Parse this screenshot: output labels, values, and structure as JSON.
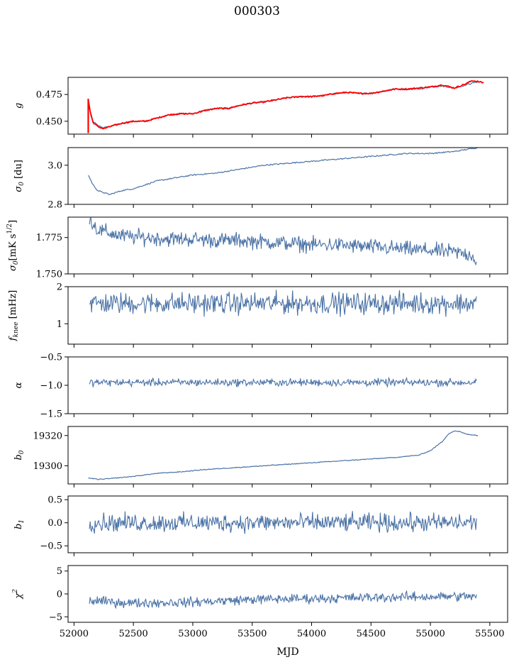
{
  "figure": {
    "title": "000303",
    "xlabel": "MJD",
    "x_ticks": [
      "52000",
      "52500",
      "53000",
      "53500",
      "54000",
      "54500",
      "55000",
      "55500"
    ]
  },
  "chart_data": [
    {
      "type": "line",
      "panel": "g",
      "ylabel": "g",
      "xlim": [
        51950,
        55650
      ],
      "ylim": [
        0.438,
        0.491
      ],
      "y_ticks": [
        0.45,
        0.475
      ],
      "y_tick_labels": [
        "0.450",
        "0.475"
      ],
      "series": [
        {
          "color": "#4a72a6",
          "values_x": [
            52120,
            52140,
            52160,
            52200,
            52250,
            52300,
            52400,
            52500,
            52600,
            52700,
            52800,
            52900,
            53000,
            53100,
            53200,
            53300,
            53400,
            53500,
            53600,
            53700,
            53800,
            53900,
            54000,
            54100,
            54200,
            54300,
            54400,
            54500,
            54600,
            54700,
            54800,
            54900,
            55000,
            55100,
            55200,
            55300,
            55400
          ],
          "values_y": [
            0.466,
            0.458,
            0.45,
            0.446,
            0.444,
            0.445,
            0.448,
            0.45,
            0.45,
            0.453,
            0.456,
            0.457,
            0.457,
            0.46,
            0.462,
            0.462,
            0.465,
            0.467,
            0.468,
            0.47,
            0.472,
            0.473,
            0.473,
            0.474,
            0.476,
            0.477,
            0.476,
            0.476,
            0.478,
            0.48,
            0.48,
            0.48,
            0.482,
            0.483,
            0.481,
            0.484,
            0.487
          ]
        },
        {
          "color": "#ff0000",
          "values_x": [
            52120,
            52140,
            52160,
            52200,
            52250,
            52300,
            52400,
            52500,
            52600,
            52700,
            52800,
            52900,
            53000,
            53100,
            53200,
            53300,
            53400,
            53500,
            53600,
            53700,
            53800,
            53900,
            54000,
            54100,
            54200,
            54300,
            54400,
            54500,
            54600,
            54700,
            54800,
            54900,
            55000,
            55100,
            55200,
            55300,
            55350,
            55400,
            55450
          ],
          "values_y": [
            0.47,
            0.457,
            0.449,
            0.445,
            0.443,
            0.445,
            0.448,
            0.45,
            0.45,
            0.453,
            0.456,
            0.457,
            0.457,
            0.46,
            0.462,
            0.462,
            0.465,
            0.467,
            0.468,
            0.47,
            0.472,
            0.473,
            0.473,
            0.474,
            0.476,
            0.477,
            0.476,
            0.476,
            0.478,
            0.48,
            0.48,
            0.481,
            0.482,
            0.484,
            0.481,
            0.485,
            0.488,
            0.487,
            0.486
          ]
        }
      ]
    },
    {
      "type": "line",
      "panel": "sigma0",
      "ylabel": "σ0 [du]",
      "xlim": [
        51950,
        55650
      ],
      "ylim": [
        2.8,
        3.09
      ],
      "y_ticks": [
        2.8,
        3.0
      ],
      "y_tick_labels": [
        "2.8",
        "3.0"
      ],
      "series": [
        {
          "color": "#4a72a6",
          "values_x": [
            52120,
            52160,
            52200,
            52250,
            52300,
            52400,
            52500,
            52600,
            52700,
            52800,
            52900,
            53000,
            53200,
            53400,
            53600,
            53800,
            54000,
            54200,
            54400,
            54600,
            54800,
            55000,
            55200,
            55300,
            55400
          ],
          "values_y": [
            2.95,
            2.9,
            2.87,
            2.86,
            2.85,
            2.87,
            2.88,
            2.9,
            2.92,
            2.93,
            2.94,
            2.95,
            2.96,
            2.98,
            3.0,
            3.01,
            3.02,
            3.03,
            3.04,
            3.05,
            3.06,
            3.06,
            3.07,
            3.08,
            3.09
          ]
        }
      ]
    },
    {
      "type": "line",
      "panel": "sigma0_noise",
      "ylabel": "σ0[mK s^1/2]",
      "xlim": [
        51950,
        55650
      ],
      "ylim": [
        1.75,
        1.789
      ],
      "y_ticks": [
        1.75,
        1.775
      ],
      "y_tick_labels": [
        "1.750",
        "1.775"
      ],
      "trend": {
        "x": [
          52130,
          52200,
          52400,
          52600,
          52800,
          53000,
          53200,
          53400,
          53600,
          53800,
          54000,
          54200,
          54400,
          54600,
          54800,
          55000,
          55200,
          55350,
          55390
        ],
        "y": [
          1.788,
          1.78,
          1.776,
          1.775,
          1.774,
          1.774,
          1.773,
          1.773,
          1.772,
          1.771,
          1.77,
          1.77,
          1.769,
          1.768,
          1.767,
          1.766,
          1.765,
          1.763,
          1.758
        ]
      },
      "noise_amplitude": 0.004,
      "series": [
        {
          "color": "#4a72a6"
        }
      ]
    },
    {
      "type": "line",
      "panel": "fknee",
      "ylabel": "f_knee [mHz]",
      "xlim": [
        51950,
        55650
      ],
      "ylim": [
        0.45,
        2.0
      ],
      "y_ticks": [
        1,
        2
      ],
      "y_tick_labels": [
        "1",
        "2"
      ],
      "trend": {
        "x": [
          52130,
          55390
        ],
        "y": [
          1.55,
          1.55
        ]
      },
      "noise_amplitude": 0.22,
      "series": [
        {
          "color": "#4a72a6"
        }
      ]
    },
    {
      "type": "line",
      "panel": "alpha",
      "ylabel": "α",
      "xlim": [
        51950,
        55650
      ],
      "ylim": [
        -1.5,
        -0.5
      ],
      "y_ticks": [
        -1.5,
        -1.0,
        -0.5
      ],
      "y_tick_labels": [
        "−1.5",
        "−1.0",
        "−0.5"
      ],
      "trend": {
        "x": [
          52130,
          55390
        ],
        "y": [
          -0.95,
          -0.95
        ]
      },
      "noise_amplitude": 0.05,
      "series": [
        {
          "color": "#4a72a6"
        }
      ]
    },
    {
      "type": "line",
      "panel": "b0",
      "ylabel": "b0",
      "xlim": [
        51950,
        55650
      ],
      "ylim": [
        19288,
        19326
      ],
      "y_ticks": [
        19300,
        19320
      ],
      "y_tick_labels": [
        "19300",
        "19320"
      ],
      "series": [
        {
          "color": "#4a72a6",
          "values_x": [
            52120,
            52200,
            52300,
            52500,
            52700,
            52900,
            53100,
            53300,
            53500,
            53700,
            53900,
            54100,
            54300,
            54500,
            54700,
            54900,
            55000,
            55100,
            55150,
            55200,
            55250,
            55300,
            55350,
            55400
          ],
          "values_y": [
            19292,
            19291,
            19291.5,
            19293,
            19295,
            19296,
            19297.5,
            19298.5,
            19299.5,
            19300.5,
            19301.5,
            19302.5,
            19303.5,
            19304.5,
            19305.5,
            19307,
            19310,
            19316,
            19321,
            19323,
            19322.5,
            19321,
            19320.5,
            19320
          ]
        }
      ]
    },
    {
      "type": "line",
      "panel": "b1",
      "ylabel": "b1",
      "xlim": [
        51950,
        55650
      ],
      "ylim": [
        -0.65,
        0.58
      ],
      "y_ticks": [
        -0.5,
        0.0,
        0.5
      ],
      "y_tick_labels": [
        "−0.5",
        "0.0",
        "0.5"
      ],
      "trend": {
        "x": [
          52130,
          55390
        ],
        "y": [
          0.0,
          0.0
        ]
      },
      "noise_amplitude": 0.15,
      "series": [
        {
          "color": "#4a72a6"
        }
      ]
    },
    {
      "type": "line",
      "panel": "chi2",
      "ylabel": "χ2",
      "xlim": [
        51950,
        55650
      ],
      "ylim": [
        -6.2,
        6.2
      ],
      "y_ticks": [
        -5,
        0,
        5
      ],
      "y_tick_labels": [
        "−5",
        "0",
        "5"
      ],
      "trend": {
        "x": [
          52130,
          52500,
          53000,
          53500,
          54000,
          54500,
          55000,
          55390
        ],
        "y": [
          -1.5,
          -2.0,
          -1.8,
          -1.2,
          -1.0,
          -0.8,
          -0.6,
          -0.5
        ]
      },
      "noise_amplitude": 0.8,
      "series": [
        {
          "color": "#4a72a6"
        }
      ]
    }
  ]
}
